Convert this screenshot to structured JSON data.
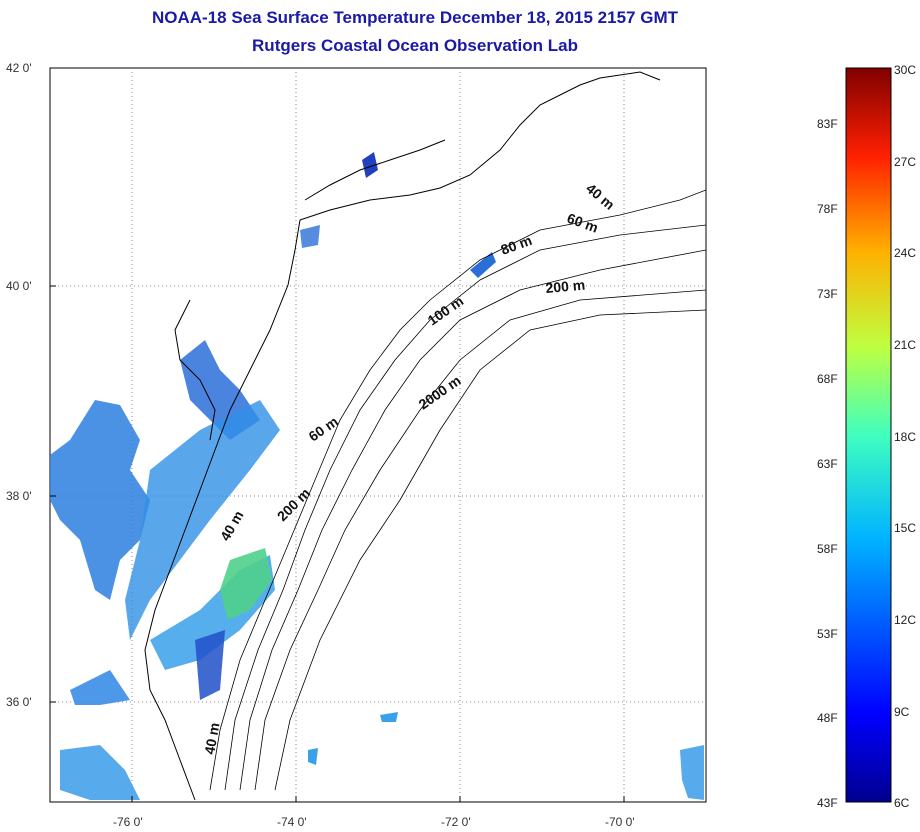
{
  "title": "NOAA-18 Sea Surface Temperature December 18, 2015 2157 GMT",
  "subtitle": "Rutgers Coastal Ocean Observation Lab",
  "map": {
    "lat_ticks": [
      "42 0'",
      "40 0'",
      "38 0'",
      "36 0'"
    ],
    "lon_ticks": [
      "-76 0'",
      "-74 0'",
      "-72 0'",
      "-70 0'"
    ],
    "lat_range": [
      35,
      42
    ],
    "lon_range": [
      -77,
      -69
    ],
    "grid": true,
    "contour_labels": [
      "40 m",
      "60 m",
      "80 m",
      "200 m",
      "100 m",
      "2000 m",
      "60 m",
      "200 m",
      "40 m",
      "40 m"
    ]
  },
  "colorbar": {
    "celsius_labels": [
      "30C",
      "27C",
      "24C",
      "21C",
      "18C",
      "15C",
      "12C",
      "9C",
      "6C"
    ],
    "fahrenheit_labels": [
      "83F",
      "78F",
      "73F",
      "68F",
      "63F",
      "58F",
      "53F",
      "48F",
      "43F"
    ],
    "range_c": [
      6,
      30
    ],
    "colormap": "jet"
  },
  "colors": {
    "title": "#1a1aa6",
    "land": "#ffffff",
    "coast": "#000000",
    "sst_cold": "#1e5fd6",
    "sst_mid": "#3ab0e8",
    "sst_warm": "#4fd87a"
  }
}
